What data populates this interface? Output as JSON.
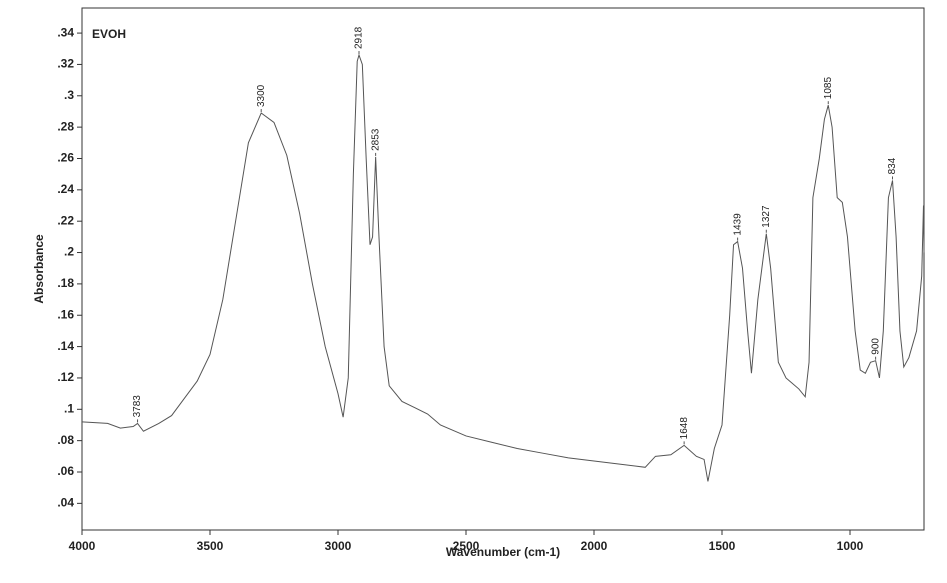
{
  "chart_data": {
    "type": "line",
    "title": "EVOH",
    "xlabel": "Wavenumber (cm-1)",
    "ylabel": "Absorbance",
    "xlim": [
      4000,
      711
    ],
    "ylim": [
      0.023,
      0.356
    ],
    "xticks": [
      4000,
      3500,
      3000,
      2500,
      2000,
      1500,
      1000
    ],
    "yticks": [
      {
        "value": 0.04,
        "label": ".04"
      },
      {
        "value": 0.06,
        "label": ".06"
      },
      {
        "value": 0.08,
        "label": ".08"
      },
      {
        "value": 0.1,
        "label": ".1"
      },
      {
        "value": 0.12,
        "label": ".12"
      },
      {
        "value": 0.14,
        "label": ".14"
      },
      {
        "value": 0.16,
        "label": ".16"
      },
      {
        "value": 0.18,
        "label": ".18"
      },
      {
        "value": 0.2,
        "label": ".2"
      },
      {
        "value": 0.22,
        "label": ".22"
      },
      {
        "value": 0.24,
        "label": ".24"
      },
      {
        "value": 0.26,
        "label": ".26"
      },
      {
        "value": 0.28,
        "label": ".28"
      },
      {
        "value": 0.3,
        "label": ".3"
      },
      {
        "value": 0.32,
        "label": ".32"
      },
      {
        "value": 0.34,
        "label": ".34"
      }
    ],
    "series": [
      {
        "name": "EVOH",
        "color": "#555555",
        "x": [
          4000,
          3900,
          3850,
          3800,
          3783,
          3760,
          3700,
          3650,
          3600,
          3550,
          3500,
          3450,
          3400,
          3350,
          3300,
          3250,
          3200,
          3150,
          3100,
          3050,
          3000,
          2980,
          2960,
          2940,
          2925,
          2918,
          2905,
          2890,
          2875,
          2865,
          2853,
          2840,
          2820,
          2800,
          2750,
          2700,
          2650,
          2600,
          2500,
          2400,
          2300,
          2200,
          2100,
          2000,
          1900,
          1800,
          1760,
          1700,
          1648,
          1600,
          1570,
          1555,
          1530,
          1500,
          1470,
          1455,
          1439,
          1420,
          1400,
          1385,
          1360,
          1327,
          1310,
          1280,
          1250,
          1200,
          1175,
          1160,
          1145,
          1120,
          1100,
          1085,
          1070,
          1050,
          1030,
          1010,
          980,
          960,
          940,
          920,
          900,
          885,
          870,
          850,
          834,
          820,
          805,
          790,
          770,
          740,
          720,
          713,
          711
        ],
        "values": [
          0.092,
          0.091,
          0.088,
          0.089,
          0.091,
          0.086,
          0.091,
          0.096,
          0.107,
          0.118,
          0.135,
          0.17,
          0.22,
          0.27,
          0.289,
          0.283,
          0.262,
          0.225,
          0.18,
          0.14,
          0.11,
          0.095,
          0.12,
          0.25,
          0.322,
          0.326,
          0.32,
          0.26,
          0.205,
          0.21,
          0.261,
          0.21,
          0.14,
          0.115,
          0.105,
          0.101,
          0.097,
          0.09,
          0.083,
          0.079,
          0.075,
          0.072,
          0.069,
          0.067,
          0.065,
          0.063,
          0.07,
          0.071,
          0.077,
          0.07,
          0.068,
          0.054,
          0.075,
          0.09,
          0.16,
          0.205,
          0.207,
          0.19,
          0.15,
          0.123,
          0.17,
          0.212,
          0.19,
          0.13,
          0.12,
          0.113,
          0.108,
          0.13,
          0.235,
          0.26,
          0.285,
          0.294,
          0.28,
          0.235,
          0.232,
          0.21,
          0.15,
          0.125,
          0.123,
          0.13,
          0.131,
          0.12,
          0.15,
          0.235,
          0.246,
          0.21,
          0.15,
          0.127,
          0.133,
          0.15,
          0.185,
          0.23,
          0.2
        ]
      }
    ],
    "peaks": [
      {
        "x": 3783,
        "y": 0.091
      },
      {
        "x": 3300,
        "y": 0.289
      },
      {
        "x": 2918,
        "y": 0.326
      },
      {
        "x": 2853,
        "y": 0.261
      },
      {
        "x": 1648,
        "y": 0.077
      },
      {
        "x": 1439,
        "y": 0.207
      },
      {
        "x": 1327,
        "y": 0.212
      },
      {
        "x": 1085,
        "y": 0.294
      },
      {
        "x": 900,
        "y": 0.131
      },
      {
        "x": 834,
        "y": 0.246
      }
    ]
  }
}
